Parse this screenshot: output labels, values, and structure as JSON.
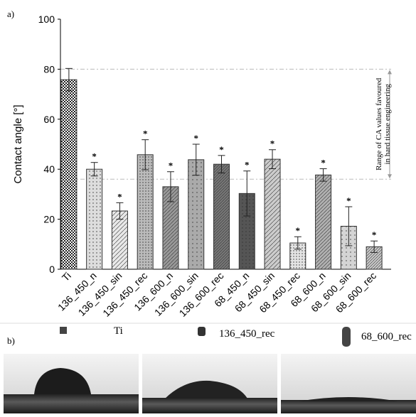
{
  "panel_labels": [
    "a)",
    "b)"
  ],
  "chart_data": {
    "type": "bar",
    "y_label": "Contact angle [°]",
    "categories": [
      "Ti",
      "136_450_n",
      "136_450_sin",
      "136_450_rec",
      "136_600_n",
      "136_600_sin",
      "136_600_rec",
      "68_450_n",
      "68_450_sin",
      "68_450_rec",
      "68_600_n",
      "68_600_sin",
      "68_600_rec"
    ],
    "values": [
      75.8,
      40,
      23.3,
      45.8,
      33,
      43.8,
      42,
      30.3,
      44,
      10.5,
      37.7,
      17.2,
      9
    ],
    "errors": [
      4.5,
      2.7,
      3.3,
      6,
      6,
      6.2,
      3.5,
      9,
      3.8,
      2.5,
      2.5,
      7.8,
      2.3
    ],
    "colors": [
      "#222222",
      "#dddddd",
      "#e8e8e8",
      "#bbbbbb",
      "#999999",
      "#aaaaaa",
      "#777777",
      "#555555",
      "#cccccc",
      "#e4e4e4",
      "#b0b0b0",
      "#d4d4d4",
      "#c8c8c8"
    ],
    "significance_labels": [
      null,
      "*",
      "*",
      "*",
      "*",
      "*",
      "*",
      "*",
      "*",
      "*",
      "*",
      "*",
      "*"
    ],
    "ylim": [
      0,
      100
    ],
    "yticks": [
      0,
      20,
      40,
      60,
      80,
      100
    ],
    "reference_lines": [
      80,
      36
    ],
    "range_annotation": [
      "Range of CA values favoured",
      "in hard tissue engineering"
    ]
  },
  "photos": [
    "Ti",
    "136_450_rec",
    "68_600_rec"
  ]
}
